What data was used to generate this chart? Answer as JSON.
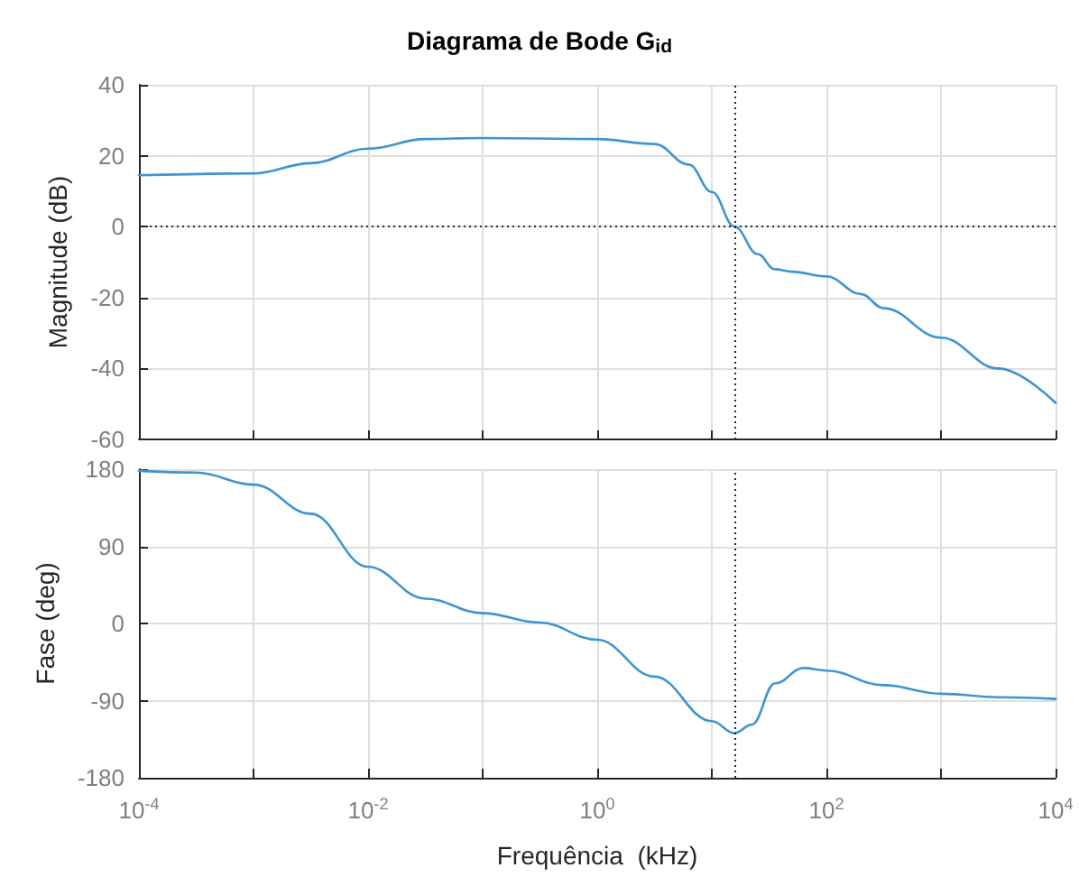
{
  "chart_data": [
    {
      "type": "line",
      "title": "Diagrama de Bode G$_{id}$",
      "ylabel": "Magnitude (dB)",
      "log": "x",
      "grid": true,
      "marker": "none",
      "line_style": "solid",
      "tick_labels": "y",
      "xlim": [
        0.0001,
        10000
      ],
      "xticks": [
        {
          "value": 0.0001,
          "label": null
        },
        {
          "value": 0.001,
          "label": null
        },
        {
          "value": 0.01,
          "label": null
        },
        {
          "value": 0.1,
          "label": null
        },
        {
          "value": 1,
          "label": null
        },
        {
          "value": 10,
          "label": null
        },
        {
          "value": 100,
          "label": null
        },
        {
          "value": 1000,
          "label": null
        },
        {
          "value": 10000,
          "label": null
        }
      ],
      "ylim": [
        -60,
        40
      ],
      "yticks": [
        -60,
        -40,
        -20,
        0,
        20,
        40
      ],
      "series": [
        {
          "color": "#3e95d1",
          "x": [
            0.0001,
            0.001,
            0.00316,
            0.01,
            0.0316,
            0.1,
            1,
            3.16,
            6.31,
            10,
            15.8,
            25.1,
            35.5,
            50.1,
            100,
            200,
            316,
            1000,
            3160,
            10000
          ],
          "values": [
            14.5,
            15,
            17.9,
            22,
            24.7,
            25,
            24.7,
            23.3,
            17.5,
            9.8,
            0,
            -7.7,
            -12,
            -12.7,
            -14,
            -19,
            -23,
            -31.3,
            -40,
            -49.7
          ]
        }
      ],
      "ref_lines": [
        {
          "axis": "y",
          "value": 0,
          "line_style": "dotted",
          "color": "#262626"
        },
        {
          "axis": "x",
          "value": 15.8,
          "line_style": "dotted",
          "color": "#262626"
        }
      ]
    },
    {
      "type": "line",
      "xlabel": "Frequência  (kHz)",
      "ylabel": "Fase (deg)",
      "log": "x",
      "grid": true,
      "marker": "none",
      "line_style": "solid",
      "xlim": [
        0.0001,
        10000
      ],
      "xticks": [
        {
          "value": 0.0001,
          "label": "10$^{-4}$"
        },
        {
          "value": 0.001,
          "label": null
        },
        {
          "value": 0.01,
          "label": "10$^{-2}$"
        },
        {
          "value": 0.1,
          "label": null
        },
        {
          "value": 1,
          "label": "10$^{0}$"
        },
        {
          "value": 10,
          "label": null
        },
        {
          "value": 100,
          "label": "10$^{2}$"
        },
        {
          "value": 1000,
          "label": null
        },
        {
          "value": 10000,
          "label": "10$^{4}$"
        }
      ],
      "ylim": [
        -180,
        180
      ],
      "yticks": [
        -180,
        -90,
        0,
        90,
        180
      ],
      "series": [
        {
          "color": "#3e95d1",
          "x": [
            0.0001,
            0.000316,
            0.001,
            0.00316,
            0.01,
            0.0316,
            0.1,
            0.316,
            1,
            3.16,
            10,
            15.8,
            22.4,
            35.5,
            63.1,
            100,
            316,
            1000,
            3160,
            10000
          ],
          "values": [
            178,
            176,
            162,
            128,
            66,
            29,
            12,
            1,
            -19,
            -62,
            -114,
            -128,
            -118,
            -70,
            -52,
            -55,
            -72,
            -82,
            -86,
            -88
          ]
        }
      ],
      "ref_lines": [
        {
          "axis": "x",
          "value": 15.8,
          "line_style": "dotted",
          "color": "#262626"
        }
      ]
    }
  ]
}
